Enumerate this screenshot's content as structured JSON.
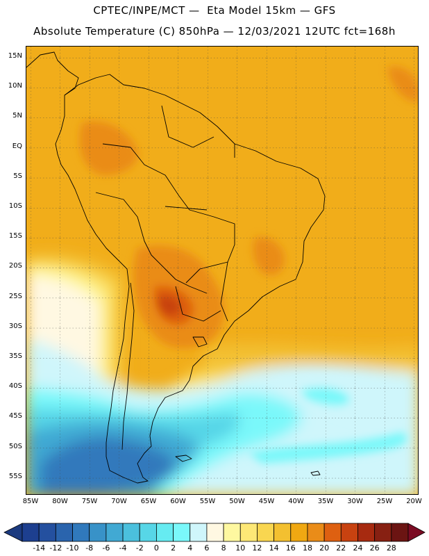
{
  "header": {
    "line1": "CPTEC/INPE/MCT —  Eta Model 15km — GFS",
    "line2": "Absolute Temperature (C) 850hPa — 12/03/2021 12UTC fct=168h"
  },
  "map": {
    "lon_range": [
      -86,
      -19
    ],
    "lat_range": [
      -58,
      16
    ],
    "lat_labels": [
      "15N",
      "10N",
      "5N",
      "EQ",
      "5S",
      "10S",
      "15S",
      "20S",
      "25S",
      "30S",
      "35S",
      "40S",
      "45S",
      "50S",
      "55S"
    ],
    "lon_labels": [
      "85W",
      "80W",
      "75W",
      "70W",
      "65W",
      "60W",
      "55W",
      "50W",
      "45W",
      "40W",
      "35W",
      "30W",
      "25W",
      "20W"
    ]
  },
  "colorbar": {
    "labels": [
      "-14",
      "-12",
      "-10",
      "-8",
      "-6",
      "-4",
      "-2",
      "0",
      "2",
      "4",
      "6",
      "8",
      "10",
      "12",
      "14",
      "16",
      "18",
      "20",
      "22",
      "24",
      "26",
      "28"
    ],
    "colors": [
      "#1d3f8f",
      "#24509f",
      "#2a64ad",
      "#3079bc",
      "#3892c8",
      "#41a9d3",
      "#4bc0dd",
      "#57d6e7",
      "#66ebf1",
      "#7af8fa",
      "#cff6fb",
      "#fff8e2",
      "#fef8a0",
      "#fde876",
      "#f9d650",
      "#f3c030",
      "#f0a812",
      "#ea8c18",
      "#de6011",
      "#c84210",
      "#a72a10",
      "#872012",
      "#6b1412"
    ],
    "left_arrow_color": "#1b3a7f",
    "right_arrow_color": "#7b0b23"
  }
}
